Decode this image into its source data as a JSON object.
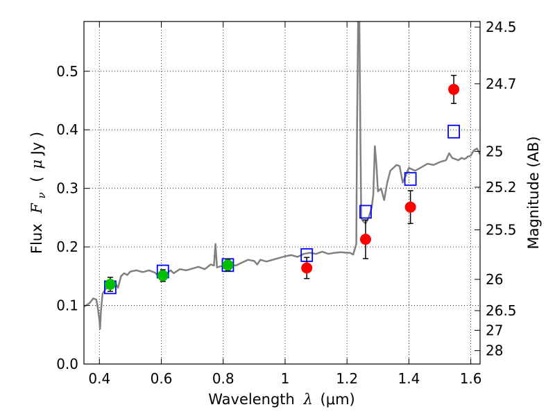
{
  "chart_data": {
    "type": "scatter",
    "xlabel_text": "Wavelength",
    "xlabel_symbol": "λ",
    "xlabel_unit": "(μm)",
    "ylabel_text": "Flux",
    "ylabel_symbol": "F",
    "ylabel_subscript": "ν",
    "ylabel_unit_open": "(",
    "ylabel_unit_mu": "μ",
    "ylabel_unit_rest": "Jy )",
    "y2label": "Magnitude (AB)",
    "xlim": [
      0.35,
      1.63
    ],
    "ylim": [
      0.0,
      0.585
    ],
    "grid": true,
    "xticks": [
      0.4,
      0.6,
      0.8,
      1.0,
      1.2,
      1.4,
      1.6
    ],
    "xtick_labels": [
      "0.4",
      "0.6",
      "0.8",
      "1",
      "1.2",
      "1.4",
      "1.6"
    ],
    "yticks": [
      0.0,
      0.1,
      0.2,
      0.3,
      0.4,
      0.5
    ],
    "ytick_labels": [
      "0.0",
      "0.1",
      "0.2",
      "0.3",
      "0.4",
      "0.5"
    ],
    "y2ticks": [
      {
        "label": "24.5",
        "mag": 24.5
      },
      {
        "label": "24.7",
        "mag": 24.7
      },
      {
        "label": "25",
        "mag": 25.0
      },
      {
        "label": "25.2",
        "mag": 25.2
      },
      {
        "label": "25.5",
        "mag": 25.5
      },
      {
        "label": "26",
        "mag": 26.0
      },
      {
        "label": "26.5",
        "mag": 26.5
      },
      {
        "label": "27",
        "mag": 27.0
      },
      {
        "label": "28",
        "mag": 28.0
      }
    ],
    "series": [
      {
        "kind": "model spectrum",
        "color": "#808080",
        "points": [
          [
            0.35,
            0.098
          ],
          [
            0.36,
            0.101
          ],
          [
            0.37,
            0.105
          ],
          [
            0.38,
            0.112
          ],
          [
            0.39,
            0.11
          ],
          [
            0.395,
            0.095
          ],
          [
            0.4,
            0.075
          ],
          [
            0.402,
            0.06
          ],
          [
            0.405,
            0.09
          ],
          [
            0.41,
            0.12
          ],
          [
            0.42,
            0.128
          ],
          [
            0.43,
            0.132
          ],
          [
            0.44,
            0.136
          ],
          [
            0.45,
            0.14
          ],
          [
            0.46,
            0.13
          ],
          [
            0.47,
            0.15
          ],
          [
            0.48,
            0.155
          ],
          [
            0.49,
            0.152
          ],
          [
            0.5,
            0.158
          ],
          [
            0.52,
            0.16
          ],
          [
            0.54,
            0.157
          ],
          [
            0.56,
            0.16
          ],
          [
            0.58,
            0.156
          ],
          [
            0.59,
            0.15
          ],
          [
            0.6,
            0.148
          ],
          [
            0.61,
            0.153
          ],
          [
            0.62,
            0.156
          ],
          [
            0.63,
            0.16
          ],
          [
            0.64,
            0.155
          ],
          [
            0.66,
            0.162
          ],
          [
            0.68,
            0.16
          ],
          [
            0.7,
            0.163
          ],
          [
            0.72,
            0.166
          ],
          [
            0.74,
            0.162
          ],
          [
            0.76,
            0.17
          ],
          [
            0.77,
            0.168
          ],
          [
            0.775,
            0.205
          ],
          [
            0.78,
            0.165
          ],
          [
            0.8,
            0.168
          ],
          [
            0.82,
            0.171
          ],
          [
            0.84,
            0.168
          ],
          [
            0.86,
            0.173
          ],
          [
            0.88,
            0.178
          ],
          [
            0.9,
            0.176
          ],
          [
            0.91,
            0.17
          ],
          [
            0.92,
            0.178
          ],
          [
            0.94,
            0.175
          ],
          [
            0.96,
            0.178
          ],
          [
            0.98,
            0.181
          ],
          [
            1.0,
            0.184
          ],
          [
            1.02,
            0.186
          ],
          [
            1.04,
            0.183
          ],
          [
            1.06,
            0.188
          ],
          [
            1.08,
            0.19
          ],
          [
            1.1,
            0.188
          ],
          [
            1.12,
            0.192
          ],
          [
            1.14,
            0.188
          ],
          [
            1.16,
            0.19
          ],
          [
            1.18,
            0.191
          ],
          [
            1.2,
            0.19
          ],
          [
            1.21,
            0.19
          ],
          [
            1.22,
            0.187
          ],
          [
            1.23,
            0.205
          ],
          [
            1.232,
            0.38
          ],
          [
            1.236,
            0.585
          ],
          [
            1.24,
            0.585
          ],
          [
            1.243,
            0.4
          ],
          [
            1.246,
            0.25
          ],
          [
            1.25,
            0.245
          ],
          [
            1.26,
            0.24
          ],
          [
            1.27,
            0.25
          ],
          [
            1.28,
            0.268
          ],
          [
            1.285,
            0.29
          ],
          [
            1.29,
            0.372
          ],
          [
            1.295,
            0.34
          ],
          [
            1.3,
            0.295
          ],
          [
            1.31,
            0.3
          ],
          [
            1.32,
            0.28
          ],
          [
            1.33,
            0.31
          ],
          [
            1.34,
            0.33
          ],
          [
            1.35,
            0.335
          ],
          [
            1.36,
            0.34
          ],
          [
            1.37,
            0.338
          ],
          [
            1.38,
            0.31
          ],
          [
            1.39,
            0.322
          ],
          [
            1.4,
            0.335
          ],
          [
            1.42,
            0.33
          ],
          [
            1.44,
            0.336
          ],
          [
            1.46,
            0.342
          ],
          [
            1.48,
            0.34
          ],
          [
            1.5,
            0.345
          ],
          [
            1.52,
            0.348
          ],
          [
            1.53,
            0.36
          ],
          [
            1.54,
            0.352
          ],
          [
            1.55,
            0.35
          ],
          [
            1.56,
            0.348
          ],
          [
            1.57,
            0.352
          ],
          [
            1.58,
            0.35
          ],
          [
            1.59,
            0.354
          ],
          [
            1.6,
            0.356
          ],
          [
            1.61,
            0.365
          ],
          [
            1.62,
            0.368
          ],
          [
            1.63,
            0.358
          ]
        ]
      },
      {
        "kind": "open squares",
        "color": "#0000ff",
        "points": [
          [
            0.435,
            0.131
          ],
          [
            0.605,
            0.158
          ],
          [
            0.815,
            0.169
          ],
          [
            1.07,
            0.186
          ],
          [
            1.26,
            0.26
          ],
          [
            1.405,
            0.316
          ],
          [
            1.545,
            0.397
          ]
        ]
      },
      {
        "kind": "green circles",
        "color": "#00c000",
        "points": [
          [
            0.435,
            0.136
          ],
          [
            0.605,
            0.151
          ],
          [
            0.815,
            0.169
          ]
        ],
        "errors": [
          0.012,
          0.01,
          0.01
        ]
      },
      {
        "kind": "red circles",
        "color": "#ff0000",
        "points": [
          [
            1.07,
            0.164
          ],
          [
            1.26,
            0.213
          ],
          [
            1.405,
            0.268
          ],
          [
            1.545,
            0.469
          ]
        ],
        "errors": [
          0.018,
          0.033,
          0.028,
          0.024
        ]
      }
    ]
  }
}
